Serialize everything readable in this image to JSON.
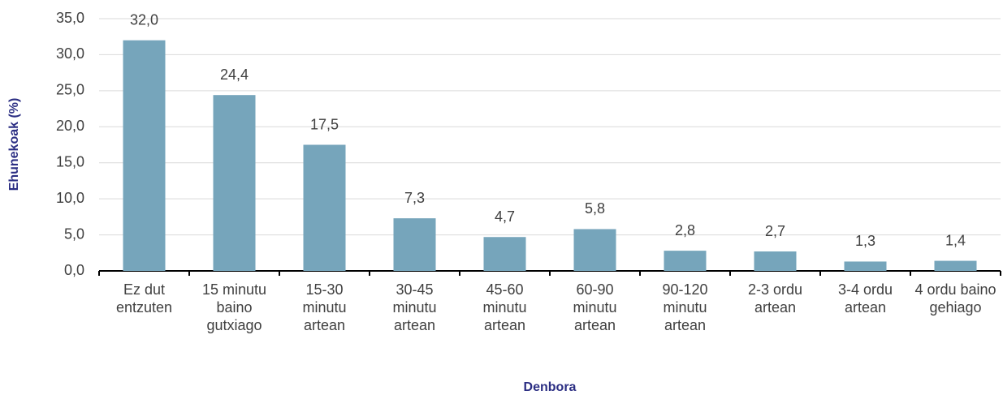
{
  "chart_data": {
    "type": "bar",
    "x_label": "Denbora",
    "y_label": "Ehunekoak (%)",
    "categories": [
      "Ez dut entzuten",
      "15 minutu baino gutxiago",
      "15-30 minutu artean",
      "30-45 minutu artean",
      "45-60 minutu artean",
      "60-90 minutu artean",
      "90-120 minutu artean",
      "2-3 ordu artean",
      "3-4 ordu artean",
      "4 ordu baino gehiago"
    ],
    "values": [
      32.0,
      24.4,
      17.5,
      7.3,
      4.7,
      5.8,
      2.8,
      2.7,
      1.3,
      1.4
    ],
    "value_labels": [
      "32,0",
      "24,4",
      "17,5",
      "7,3",
      "4,7",
      "5,8",
      "2,8",
      "2,7",
      "1,3",
      "1,4"
    ],
    "color": "#76a5bb",
    "ylim": [
      0,
      35
    ],
    "yticks": [
      {
        "value": 0,
        "label": "0,0"
      },
      {
        "value": 5,
        "label": "5,0"
      },
      {
        "value": 10,
        "label": "10,0"
      },
      {
        "value": 15,
        "label": "15,0"
      },
      {
        "value": 20,
        "label": "20,0"
      },
      {
        "value": 25,
        "label": "25,0"
      },
      {
        "value": 30,
        "label": "30,0"
      },
      {
        "value": 35,
        "label": "35,0"
      }
    ],
    "grid": true
  }
}
